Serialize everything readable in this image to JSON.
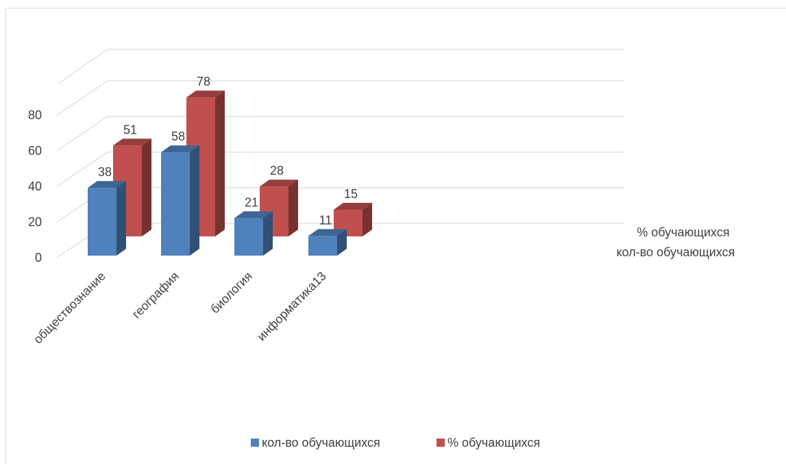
{
  "chart_data": {
    "type": "bar",
    "categories": [
      "обществознание",
      "география",
      "биология",
      "информатика13"
    ],
    "series": [
      {
        "name": "кол-во обучающихся",
        "values": [
          38,
          58,
          21,
          11
        ],
        "color": "#4F81BD"
      },
      {
        "name": "% обучающихся",
        "values": [
          51,
          78,
          28,
          15
        ],
        "color": "#C0504D"
      }
    ],
    "depth_labels": [
      "% обучающихся",
      "кол-во обучающихся"
    ],
    "y_ticks": [
      0,
      20,
      40,
      60,
      80
    ],
    "ylim": [
      0,
      80
    ],
    "grid": true,
    "three_d": true,
    "legend_position": "bottom"
  }
}
